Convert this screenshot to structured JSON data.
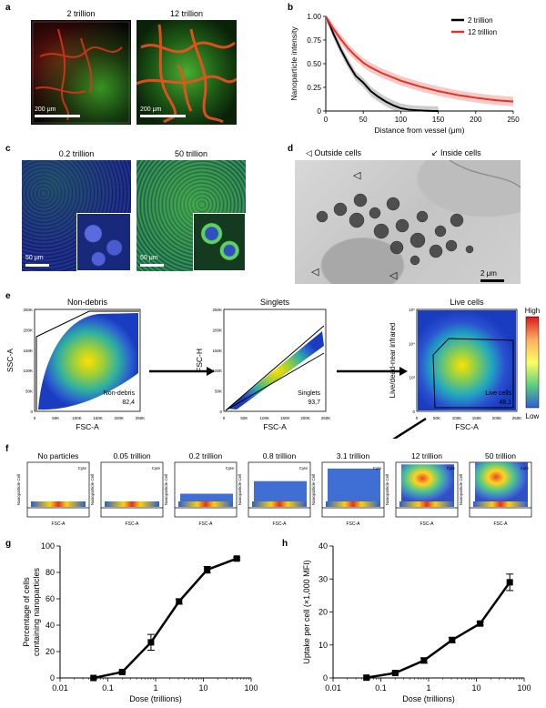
{
  "panels": {
    "a": {
      "label": "a",
      "left_caption": "2 trillion",
      "right_caption": "12 trillion",
      "left_scale": "200 μm",
      "right_scale": "200 μm"
    },
    "b": {
      "label": "b"
    },
    "c": {
      "label": "c",
      "left_caption": "0.2 trillion",
      "right_caption": "50 trillion",
      "left_scale": "50 μm",
      "right_scale": "50 μm"
    },
    "d": {
      "label": "d",
      "outside_label": "Outside cells",
      "inside_label": "Inside cells",
      "scale": "2 μm"
    },
    "e": {
      "label": "e",
      "plots": [
        {
          "title": "Non-debris",
          "xlabel": "FSC-A",
          "ylabel": "SSC-A",
          "gate_name": "Non-debris",
          "gate_value": "82,4"
        },
        {
          "title": "Singlets",
          "xlabel": "FSC-A",
          "ylabel": "FSC-H",
          "gate_name": "Singlets",
          "gate_value": "93,7"
        },
        {
          "title": "Live cells",
          "xlabel": "FSC-A",
          "ylabel": "Live/dead-near infrared",
          "gate_name": "Live cells",
          "gate_value": "48,1"
        }
      ],
      "y_ticks": [
        "0",
        "50K",
        "100K",
        "150K",
        "200K",
        "250K"
      ],
      "x_ticks": [
        "0",
        "50K",
        "100K",
        "150K",
        "200K",
        "250K"
      ],
      "live_y_ticks": [
        "0",
        "10³",
        "10⁴",
        "10⁵"
      ],
      "colorbar_high": "High",
      "colorbar_low": "Low"
    },
    "f": {
      "label": "f",
      "doses": [
        "No particles",
        "0.05 trillion",
        "0.2 trillion",
        "0.8 trillion",
        "3.1 trillion",
        "12 trillion",
        "50 trillion"
      ],
      "xlabel": "FSC-A",
      "ylabel": "Nanoparticle Cell",
      "gate_label": "Cyte"
    },
    "g": {
      "label": "g"
    },
    "h": {
      "label": "h"
    }
  },
  "chart_data": [
    {
      "id": "b",
      "type": "line",
      "xlabel": "Distance from vessel (μm)",
      "ylabel": "Nanoparticle intensity",
      "xlim": [
        0,
        250
      ],
      "ylim": [
        0,
        1.0
      ],
      "x_ticks": [
        0,
        50,
        100,
        150,
        200,
        250
      ],
      "y_ticks": [
        0,
        0.25,
        0.5,
        0.75,
        1.0
      ],
      "y_tick_labels": [
        "0",
        "0.25",
        "0.50",
        "0.75",
        "1.00"
      ],
      "legend_position": "top-right",
      "series": [
        {
          "name": "2 trillion",
          "color": "#000000",
          "x": [
            0,
            5,
            10,
            20,
            30,
            40,
            50,
            60,
            70,
            80,
            90,
            100,
            110,
            120,
            130,
            140,
            150
          ],
          "y": [
            1.0,
            0.92,
            0.82,
            0.65,
            0.5,
            0.37,
            0.3,
            0.21,
            0.15,
            0.1,
            0.06,
            0.03,
            0.015,
            0.008,
            0.004,
            0.001,
            0.0
          ]
        },
        {
          "name": "12 trillion",
          "color": "#e8302a",
          "x": [
            0,
            10,
            20,
            30,
            40,
            50,
            60,
            75,
            100,
            125,
            150,
            175,
            200,
            225,
            250
          ],
          "y": [
            1.0,
            0.87,
            0.76,
            0.66,
            0.58,
            0.51,
            0.46,
            0.4,
            0.32,
            0.26,
            0.21,
            0.17,
            0.14,
            0.115,
            0.1
          ]
        }
      ]
    },
    {
      "id": "g",
      "type": "line",
      "xlabel": "Dose (trillions)",
      "ylabel": "Percentage of cells containing nanoparticles",
      "xscale": "log",
      "xlim": [
        0.01,
        100
      ],
      "ylim": [
        0,
        100
      ],
      "x_ticks": [
        0.01,
        0.1,
        1,
        10,
        100
      ],
      "x_tick_labels": [
        "0.01",
        "0.1",
        "1",
        "10",
        "100"
      ],
      "y_ticks": [
        0,
        20,
        40,
        60,
        80,
        100
      ],
      "series": [
        {
          "x": [
            0.05,
            0.2,
            0.8,
            3.1,
            12,
            50
          ],
          "y": [
            0,
            4.5,
            27,
            58,
            82,
            90.5
          ],
          "err": [
            0,
            0.5,
            6,
            2,
            2.5,
            1
          ]
        }
      ]
    },
    {
      "id": "h",
      "type": "line",
      "xlabel": "Dose (trillions)",
      "ylabel": "Uptake per cell (×1,000 MFI)",
      "xscale": "log",
      "xlim": [
        0.01,
        100
      ],
      "ylim": [
        0,
        40
      ],
      "x_ticks": [
        0.01,
        0.1,
        1,
        10,
        100
      ],
      "x_tick_labels": [
        "0.01",
        "0.1",
        "1",
        "10",
        "100"
      ],
      "y_ticks": [
        0,
        10,
        20,
        30,
        40
      ],
      "series": [
        {
          "x": [
            0.05,
            0.2,
            0.8,
            3.1,
            12,
            50
          ],
          "y": [
            0.1,
            1.5,
            5.3,
            11.5,
            16.5,
            29
          ],
          "err": [
            0,
            0.3,
            0.8,
            0.8,
            0.5,
            2.5
          ]
        }
      ]
    }
  ]
}
